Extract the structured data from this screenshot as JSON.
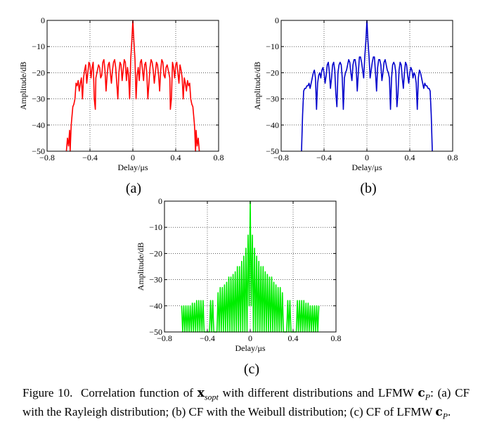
{
  "figure": {
    "caption": {
      "label": "Figure 10.",
      "t1": "Correlation function of",
      "v1": "x",
      "s1": "sopt",
      "t2": "with different distributions and LFMW",
      "v2": "c",
      "s2": "P",
      "t3": ": (a) CF with the Rayleigh distribution; (b) CF with the Weibull distribution; (c) CF of LFMW",
      "v3": "c",
      "s3": "P",
      "t4": "."
    }
  },
  "chart_data": [
    {
      "type": "line",
      "panel_label": "(a)",
      "distribution": "Rayleigh",
      "color": "#ff0000",
      "xlabel": "Delay/μs",
      "ylabel": "Amplitude/dB",
      "xlim": [
        -0.8,
        0.8
      ],
      "ylim": [
        -50,
        0
      ],
      "xticks": [
        "−0.8",
        "−0.4",
        "0",
        "0.4",
        "0.8"
      ],
      "yticks": [
        "0",
        "−10",
        "−20",
        "−30",
        "−40",
        "−50"
      ],
      "grid": true,
      "series": [
        {
          "name": "CF (Rayleigh)",
          "x": [
            -0.62,
            -0.61,
            -0.6,
            -0.59,
            -0.585,
            -0.575,
            -0.56,
            -0.55,
            -0.54,
            -0.53,
            -0.52,
            -0.51,
            -0.5,
            -0.49,
            -0.48,
            -0.47,
            -0.46,
            -0.45,
            -0.44,
            -0.43,
            -0.42,
            -0.41,
            -0.4,
            -0.39,
            -0.38,
            -0.37,
            -0.36,
            -0.35,
            -0.345,
            -0.335,
            -0.32,
            -0.31,
            -0.3,
            -0.29,
            -0.28,
            -0.27,
            -0.26,
            -0.25,
            -0.24,
            -0.23,
            -0.22,
            -0.21,
            -0.2,
            -0.19,
            -0.18,
            -0.17,
            -0.16,
            -0.15,
            -0.14,
            -0.13,
            -0.12,
            -0.11,
            -0.1,
            -0.09,
            -0.08,
            -0.07,
            -0.06,
            -0.05,
            -0.04,
            -0.03,
            -0.02,
            -0.01,
            0.0,
            0.01,
            0.02,
            0.03,
            0.04,
            0.05,
            0.06,
            0.07,
            0.08,
            0.09,
            0.1,
            0.11,
            0.12,
            0.13,
            0.14,
            0.15,
            0.16,
            0.17,
            0.18,
            0.19,
            0.2,
            0.21,
            0.22,
            0.23,
            0.24,
            0.25,
            0.26,
            0.27,
            0.28,
            0.29,
            0.3,
            0.31,
            0.32,
            0.335,
            0.345,
            0.35,
            0.36,
            0.37,
            0.38,
            0.39,
            0.4,
            0.41,
            0.42,
            0.43,
            0.44,
            0.45,
            0.46,
            0.47,
            0.48,
            0.49,
            0.5,
            0.51,
            0.52,
            0.53,
            0.54,
            0.55,
            0.56,
            0.575,
            0.585,
            0.59,
            0.6,
            0.61,
            0.62
          ],
          "y": [
            -50,
            -45,
            -48,
            -42,
            -50,
            -40,
            -33,
            -32,
            -30,
            -24,
            -25,
            -23,
            -27,
            -24,
            -22,
            -30,
            -22,
            -19,
            -17,
            -24,
            -20,
            -16,
            -17,
            -22,
            -18,
            -16,
            -30,
            -34,
            -22,
            -20,
            -17,
            -18,
            -22,
            -21,
            -16,
            -15,
            -19,
            -27,
            -21,
            -17,
            -16,
            -20,
            -24,
            -19,
            -16,
            -15,
            -18,
            -24,
            -30,
            -20,
            -16,
            -17,
            -23,
            -19,
            -15,
            -16,
            -23,
            -18,
            -21,
            -30,
            -15,
            -8,
            0,
            -8,
            -15,
            -30,
            -21,
            -18,
            -23,
            -16,
            -15,
            -19,
            -23,
            -17,
            -16,
            -20,
            -30,
            -24,
            -18,
            -15,
            -16,
            -19,
            -24,
            -20,
            -16,
            -17,
            -21,
            -27,
            -19,
            -15,
            -16,
            -21,
            -22,
            -18,
            -17,
            -20,
            -22,
            -34,
            -30,
            -16,
            -18,
            -22,
            -17,
            -16,
            -20,
            -24,
            -17,
            -19,
            -22,
            -30,
            -22,
            -24,
            -27,
            -23,
            -25,
            -24,
            -30,
            -32,
            -33,
            -40,
            -50,
            -42,
            -48,
            -45,
            -50
          ]
        }
      ]
    },
    {
      "type": "line",
      "panel_label": "(b)",
      "distribution": "Weibull",
      "color": "#0000cc",
      "xlabel": "Delay/μs",
      "ylabel": "Amplitude/dB",
      "xlim": [
        -0.8,
        0.8
      ],
      "ylim": [
        -50,
        0
      ],
      "xticks": [
        "−0.8",
        "−0.4",
        "0",
        "0.4",
        "0.8"
      ],
      "yticks": [
        "0",
        "−10",
        "−20",
        "−30",
        "−40",
        "−50"
      ],
      "grid": true,
      "series": [
        {
          "name": "CF (Weibull)",
          "x": [
            -0.61,
            -0.6,
            -0.59,
            -0.58,
            -0.57,
            -0.56,
            -0.55,
            -0.54,
            -0.53,
            -0.52,
            -0.51,
            -0.5,
            -0.49,
            -0.48,
            -0.47,
            -0.46,
            -0.45,
            -0.44,
            -0.43,
            -0.42,
            -0.41,
            -0.4,
            -0.39,
            -0.38,
            -0.37,
            -0.36,
            -0.35,
            -0.34,
            -0.33,
            -0.32,
            -0.31,
            -0.3,
            -0.29,
            -0.28,
            -0.27,
            -0.26,
            -0.25,
            -0.24,
            -0.23,
            -0.22,
            -0.21,
            -0.2,
            -0.19,
            -0.18,
            -0.17,
            -0.16,
            -0.15,
            -0.14,
            -0.13,
            -0.12,
            -0.11,
            -0.1,
            -0.09,
            -0.08,
            -0.07,
            -0.06,
            -0.05,
            -0.04,
            -0.03,
            -0.02,
            -0.01,
            0.0,
            0.01,
            0.02,
            0.03,
            0.04,
            0.05,
            0.06,
            0.07,
            0.08,
            0.09,
            0.1,
            0.11,
            0.12,
            0.13,
            0.14,
            0.15,
            0.16,
            0.17,
            0.18,
            0.19,
            0.2,
            0.21,
            0.22,
            0.23,
            0.24,
            0.25,
            0.26,
            0.27,
            0.28,
            0.29,
            0.3,
            0.31,
            0.32,
            0.33,
            0.34,
            0.35,
            0.36,
            0.37,
            0.38,
            0.39,
            0.4,
            0.41,
            0.42,
            0.43,
            0.44,
            0.45,
            0.46,
            0.47,
            0.48,
            0.49,
            0.5,
            0.51,
            0.52,
            0.53,
            0.54,
            0.55,
            0.56,
            0.57,
            0.58,
            0.59,
            0.6,
            0.61
          ],
          "y": [
            -50,
            -36,
            -27,
            -26,
            -26,
            -25,
            -25,
            -24,
            -26,
            -24,
            -22,
            -20,
            -19,
            -22,
            -34,
            -24,
            -21,
            -20,
            -22,
            -19,
            -18,
            -20,
            -24,
            -21,
            -17,
            -16,
            -20,
            -26,
            -22,
            -17,
            -16,
            -19,
            -28,
            -33,
            -20,
            -17,
            -16,
            -17,
            -22,
            -34,
            -22,
            -20,
            -19,
            -17,
            -15,
            -16,
            -20,
            -23,
            -17,
            -15,
            -15,
            -18,
            -27,
            -20,
            -14,
            -14,
            -16,
            -19,
            -22,
            -14,
            -8,
            0,
            -8,
            -14,
            -22,
            -19,
            -16,
            -14,
            -14,
            -20,
            -27,
            -18,
            -15,
            -15,
            -17,
            -23,
            -20,
            -16,
            -15,
            -17,
            -19,
            -20,
            -22,
            -34,
            -22,
            -17,
            -16,
            -17,
            -20,
            -33,
            -28,
            -19,
            -16,
            -17,
            -22,
            -26,
            -20,
            -16,
            -17,
            -21,
            -24,
            -20,
            -18,
            -19,
            -22,
            -20,
            -21,
            -24,
            -34,
            -22,
            -19,
            -20,
            -22,
            -24,
            -26,
            -24,
            -25,
            -25,
            -26,
            -26,
            -27,
            -36,
            -50
          ]
        }
      ]
    },
    {
      "type": "line",
      "panel_label": "(c)",
      "distribution": "LFMW",
      "color": "#00ee00",
      "xlabel": "Delay/μs",
      "ylabel": "Amplitude/dB",
      "xlim": [
        -0.8,
        0.8
      ],
      "ylim": [
        -50,
        0
      ],
      "xticks": [
        "−0.8",
        "−0.4",
        "0",
        "0.4",
        "0.8"
      ],
      "yticks": [
        "0",
        "−10",
        "−20",
        "−30",
        "−40",
        "−50"
      ],
      "grid": true,
      "series": [
        {
          "name": "CF (LFMW)",
          "x": [
            -0.64,
            -0.63,
            -0.62,
            -0.61,
            -0.6,
            -0.59,
            -0.58,
            -0.57,
            -0.56,
            -0.55,
            -0.54,
            -0.53,
            -0.52,
            -0.51,
            -0.5,
            -0.49,
            -0.48,
            -0.47,
            -0.46,
            -0.45,
            -0.44,
            -0.43,
            -0.42,
            -0.41,
            -0.4,
            -0.39,
            -0.38,
            -0.37,
            -0.36,
            -0.35,
            -0.34,
            -0.33,
            -0.32,
            -0.31,
            -0.3,
            -0.29,
            -0.28,
            -0.27,
            -0.26,
            -0.25,
            -0.24,
            -0.23,
            -0.22,
            -0.21,
            -0.2,
            -0.19,
            -0.18,
            -0.17,
            -0.16,
            -0.15,
            -0.14,
            -0.13,
            -0.12,
            -0.11,
            -0.1,
            -0.09,
            -0.08,
            -0.07,
            -0.06,
            -0.05,
            -0.04,
            -0.03,
            -0.02,
            -0.01,
            0.0,
            0.01,
            0.02,
            0.03,
            0.04,
            0.05,
            0.06,
            0.07,
            0.08,
            0.09,
            0.1,
            0.11,
            0.12,
            0.13,
            0.14,
            0.15,
            0.16,
            0.17,
            0.18,
            0.19,
            0.2,
            0.21,
            0.22,
            0.23,
            0.24,
            0.25,
            0.26,
            0.27,
            0.28,
            0.29,
            0.3,
            0.31,
            0.32,
            0.33,
            0.34,
            0.35,
            0.36,
            0.37,
            0.38,
            0.39,
            0.4,
            0.41,
            0.42,
            0.43,
            0.44,
            0.45,
            0.46,
            0.47,
            0.48,
            0.49,
            0.5,
            0.51,
            0.52,
            0.53,
            0.54,
            0.55,
            0.56,
            0.57,
            0.58,
            0.59,
            0.6,
            0.61,
            0.62,
            0.63,
            0.64
          ],
          "y": [
            -40,
            -50,
            -40,
            -50,
            -40,
            -50,
            -40,
            -50,
            -40,
            -50,
            -39,
            -50,
            -39,
            -50,
            -38,
            -50,
            -38,
            -50,
            -38,
            -50,
            -38,
            -50,
            -50,
            -50,
            -50,
            -50,
            -50,
            -38,
            -50,
            -38,
            -50,
            -50,
            -50,
            -50,
            -35,
            -50,
            -33,
            -50,
            -33,
            -50,
            -32,
            -50,
            -31,
            -50,
            -29,
            -50,
            -29,
            -50,
            -28,
            -50,
            -27,
            -50,
            -25,
            -50,
            -25,
            -50,
            -23,
            -50,
            -21,
            -50,
            -18,
            -50,
            -13,
            -40,
            0,
            -40,
            -13,
            -50,
            -18,
            -50,
            -21,
            -50,
            -23,
            -50,
            -25,
            -50,
            -25,
            -50,
            -27,
            -50,
            -28,
            -50,
            -29,
            -50,
            -29,
            -50,
            -31,
            -50,
            -32,
            -50,
            -33,
            -50,
            -33,
            -50,
            -35,
            -50,
            -50,
            -50,
            -50,
            -38,
            -50,
            -38,
            -50,
            -50,
            -50,
            -50,
            -50,
            -50,
            -38,
            -50,
            -38,
            -50,
            -38,
            -50,
            -38,
            -50,
            -39,
            -50,
            -39,
            -50,
            -40,
            -50,
            -40,
            -50,
            -40,
            -50,
            -40,
            -50,
            -40
          ]
        }
      ]
    }
  ]
}
